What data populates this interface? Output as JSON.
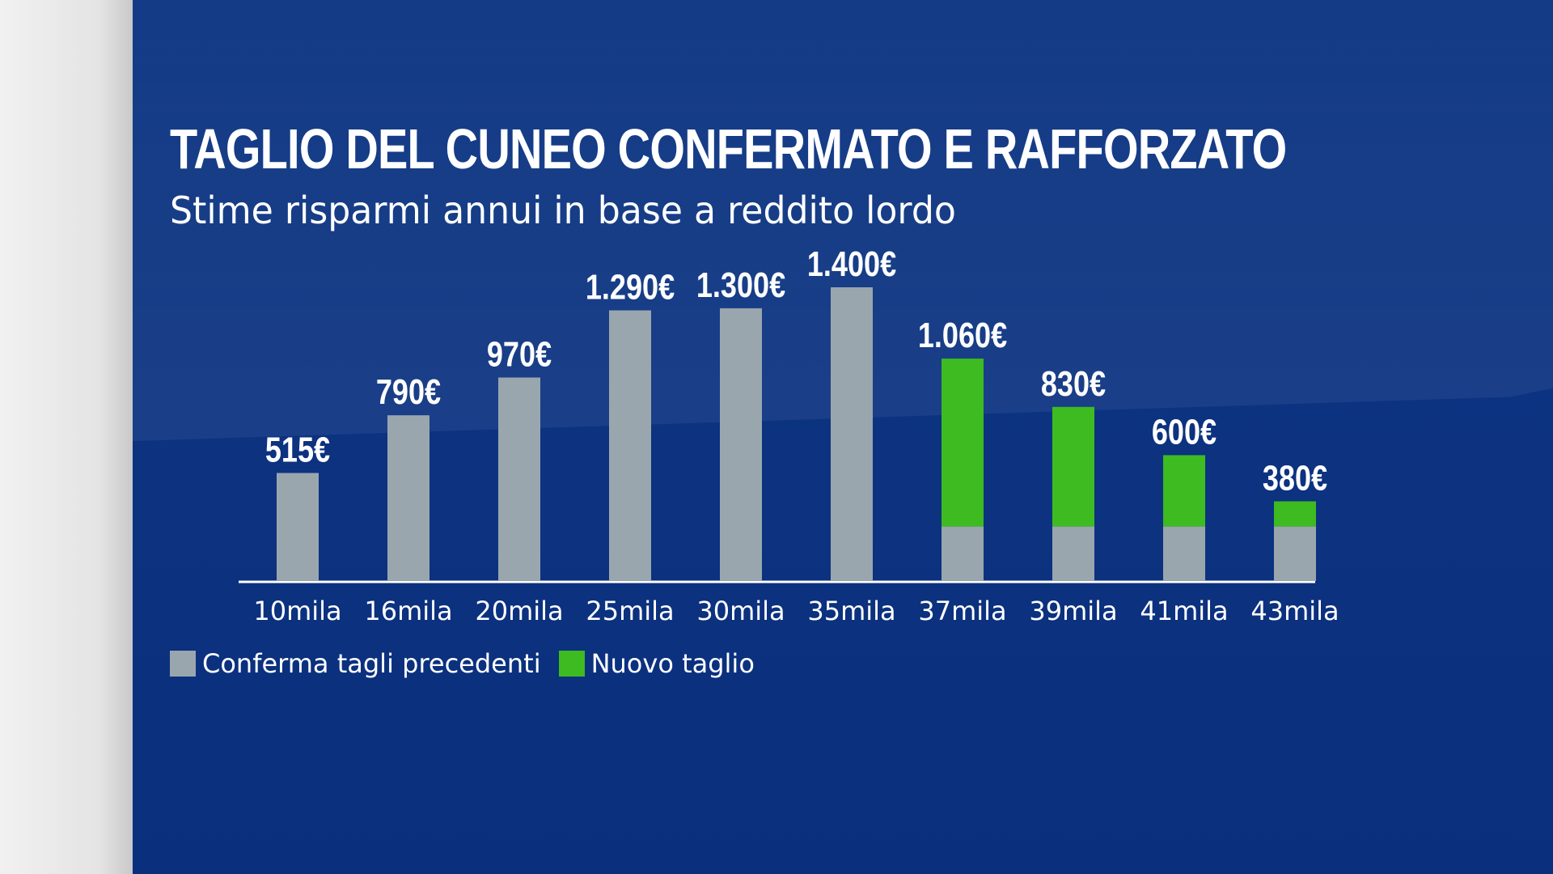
{
  "title": "TAGLIO DEL CUNEO CONFERMATO E RAFFORZATO",
  "subtitle": "Stime risparmi annui in base a reddito lordo",
  "colors": {
    "background": "#0d3380",
    "previous_cut": "#9aa6ae",
    "new_cut": "#3dbb21",
    "text": "#ffffff"
  },
  "legend": [
    {
      "name": "Conferma tagli precedenti",
      "color": "#9aa6ae"
    },
    {
      "name": "Nuovo taglio",
      "color": "#3dbb21"
    }
  ],
  "chart_data": {
    "type": "bar",
    "stacked": true,
    "title": "TAGLIO DEL CUNEO CONFERMATO E RAFFORZATO",
    "subtitle": "Stime risparmi annui in base a reddito lordo",
    "xlabel": "",
    "ylabel": "",
    "ylim": [
      0,
      1400
    ],
    "grid": false,
    "legend_position": "bottom-left",
    "categories": [
      "10mila",
      "16mila",
      "20mila",
      "25mila",
      "30mila",
      "35mila",
      "37mila",
      "39mila",
      "41mila",
      "43mila"
    ],
    "series": [
      {
        "name": "Conferma tagli precedenti",
        "color": "#9aa6ae",
        "values": [
          515,
          790,
          970,
          1290,
          1300,
          1400,
          260,
          260,
          260,
          260
        ]
      },
      {
        "name": "Nuovo taglio",
        "color": "#3dbb21",
        "values": [
          0,
          0,
          0,
          0,
          0,
          0,
          800,
          570,
          340,
          120
        ]
      }
    ],
    "totals": [
      515,
      790,
      970,
      1290,
      1300,
      1400,
      1060,
      830,
      600,
      380
    ],
    "data_labels": [
      "515€",
      "790€",
      "970€",
      "1.290€",
      "1.300€",
      "1.400€",
      "1.060€",
      "830€",
      "600€",
      "380€"
    ]
  }
}
